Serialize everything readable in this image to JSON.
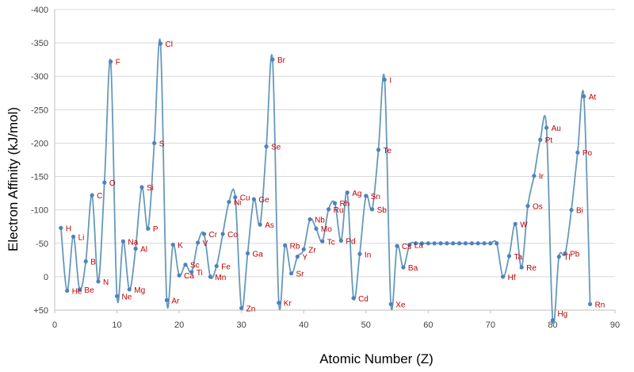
{
  "chart_data": {
    "type": "line",
    "title": "",
    "xlabel": "Atomic Number (Z)",
    "ylabel": "Electron Affinity (kJ/mol)",
    "xlim": [
      0,
      90
    ],
    "ylim": [
      50,
      -400
    ],
    "y_inverted": true,
    "x_ticks": [
      "0",
      "10",
      "20",
      "30",
      "40",
      "50",
      "60",
      "70",
      "80",
      "90"
    ],
    "y_ticks": [
      "+50",
      "0",
      "-50",
      "-100",
      "-150",
      "-200",
      "-250",
      "-300",
      "-350",
      "-400"
    ],
    "grid": "horizontal",
    "line_color": "#6699bb",
    "marker_color": "#4f81bd",
    "label_color": "#c00000",
    "series": [
      {
        "values": [
          [
            1,
            -73
          ],
          [
            2,
            21
          ],
          [
            3,
            -60
          ],
          [
            4,
            19
          ],
          [
            5,
            -23
          ],
          [
            6,
            -122
          ],
          [
            7,
            7
          ],
          [
            8,
            -141
          ],
          [
            9,
            -322
          ],
          [
            10,
            29
          ],
          [
            11,
            -53
          ],
          [
            12,
            19
          ],
          [
            13,
            -42
          ],
          [
            14,
            -134
          ],
          [
            15,
            -72
          ],
          [
            16,
            -200
          ],
          [
            17,
            -349
          ],
          [
            18,
            35
          ],
          [
            19,
            -48
          ],
          [
            20,
            -2
          ],
          [
            21,
            -18
          ],
          [
            22,
            -7
          ],
          [
            23,
            -51
          ],
          [
            24,
            -64
          ],
          [
            25,
            0
          ],
          [
            26,
            -16
          ],
          [
            27,
            -64
          ],
          [
            28,
            -112
          ],
          [
            29,
            -119
          ],
          [
            30,
            47
          ],
          [
            31,
            -35
          ],
          [
            32,
            -116
          ],
          [
            33,
            -78
          ],
          [
            34,
            -195
          ],
          [
            35,
            -325
          ],
          [
            36,
            39
          ],
          [
            37,
            -47
          ],
          [
            38,
            -5
          ],
          [
            39,
            -30
          ],
          [
            40,
            -41
          ],
          [
            41,
            -86
          ],
          [
            42,
            -72
          ],
          [
            43,
            -53
          ],
          [
            44,
            -101
          ],
          [
            45,
            -110
          ],
          [
            46,
            -54
          ],
          [
            47,
            -126
          ],
          [
            48,
            32
          ],
          [
            49,
            -34
          ],
          [
            50,
            -121
          ],
          [
            51,
            -101
          ],
          [
            52,
            -190
          ],
          [
            53,
            -295
          ],
          [
            54,
            41
          ],
          [
            55,
            -46
          ],
          [
            56,
            -14
          ],
          [
            57,
            -48
          ],
          [
            58,
            -50
          ],
          [
            59,
            -50
          ],
          [
            60,
            -50
          ],
          [
            61,
            -50
          ],
          [
            62,
            -50
          ],
          [
            63,
            -50
          ],
          [
            64,
            -50
          ],
          [
            65,
            -50
          ],
          [
            66,
            -50
          ],
          [
            67,
            -50
          ],
          [
            68,
            -50
          ],
          [
            69,
            -50
          ],
          [
            70,
            -50
          ],
          [
            71,
            -50
          ],
          [
            72,
            0
          ],
          [
            73,
            -31
          ],
          [
            74,
            -79
          ],
          [
            75,
            -14
          ],
          [
            76,
            -106
          ],
          [
            77,
            -151
          ],
          [
            78,
            -205
          ],
          [
            79,
            -223
          ],
          [
            80,
            65
          ],
          [
            81,
            -30
          ],
          [
            82,
            -35
          ],
          [
            83,
            -100
          ],
          [
            84,
            -186
          ],
          [
            85,
            -270
          ],
          [
            86,
            41
          ]
        ]
      }
    ],
    "element_labels": [
      {
        "z": 1,
        "text": "H"
      },
      {
        "z": 2,
        "text": "He"
      },
      {
        "z": 3,
        "text": "Li"
      },
      {
        "z": 4,
        "text": "Be"
      },
      {
        "z": 5,
        "text": "B"
      },
      {
        "z": 6,
        "text": "C"
      },
      {
        "z": 7,
        "text": "N"
      },
      {
        "z": 8,
        "text": "O"
      },
      {
        "z": 9,
        "text": "F"
      },
      {
        "z": 10,
        "text": "Ne"
      },
      {
        "z": 11,
        "text": "Na"
      },
      {
        "z": 12,
        "text": "Mg"
      },
      {
        "z": 13,
        "text": "Al"
      },
      {
        "z": 14,
        "text": "Si"
      },
      {
        "z": 15,
        "text": "P"
      },
      {
        "z": 16,
        "text": "S"
      },
      {
        "z": 17,
        "text": "Cl"
      },
      {
        "z": 18,
        "text": "Ar"
      },
      {
        "z": 19,
        "text": "K"
      },
      {
        "z": 20,
        "text": "Ca"
      },
      {
        "z": 21,
        "text": "Sc"
      },
      {
        "z": 22,
        "text": "Ti"
      },
      {
        "z": 23,
        "text": "V"
      },
      {
        "z": 24,
        "text": "Cr"
      },
      {
        "z": 25,
        "text": "Mn"
      },
      {
        "z": 26,
        "text": "Fe"
      },
      {
        "z": 27,
        "text": "Co"
      },
      {
        "z": 28,
        "text": "Ni"
      },
      {
        "z": 29,
        "text": "Cu"
      },
      {
        "z": 30,
        "text": "Zn"
      },
      {
        "z": 31,
        "text": "Ga"
      },
      {
        "z": 32,
        "text": "Ge"
      },
      {
        "z": 33,
        "text": "As"
      },
      {
        "z": 34,
        "text": "Se"
      },
      {
        "z": 35,
        "text": "Br"
      },
      {
        "z": 36,
        "text": "Kr"
      },
      {
        "z": 37,
        "text": "Rb"
      },
      {
        "z": 38,
        "text": "Sr"
      },
      {
        "z": 39,
        "text": "Y"
      },
      {
        "z": 40,
        "text": "Zr"
      },
      {
        "z": 41,
        "text": "Nb"
      },
      {
        "z": 42,
        "text": "Mo"
      },
      {
        "z": 43,
        "text": "Tc"
      },
      {
        "z": 44,
        "text": "Ru"
      },
      {
        "z": 45,
        "text": "Rh"
      },
      {
        "z": 46,
        "text": "Pd"
      },
      {
        "z": 47,
        "text": "Ag"
      },
      {
        "z": 48,
        "text": "Cd"
      },
      {
        "z": 49,
        "text": "In"
      },
      {
        "z": 50,
        "text": "Sn"
      },
      {
        "z": 51,
        "text": "Sb"
      },
      {
        "z": 52,
        "text": "Te"
      },
      {
        "z": 53,
        "text": "I"
      },
      {
        "z": 54,
        "text": "Xe"
      },
      {
        "z": 55,
        "text": "Cs"
      },
      {
        "z": 56,
        "text": "Ba"
      },
      {
        "z": 57,
        "text": "La"
      },
      {
        "z": 72,
        "text": "Hf"
      },
      {
        "z": 73,
        "text": "Ta"
      },
      {
        "z": 74,
        "text": "W"
      },
      {
        "z": 75,
        "text": "Re"
      },
      {
        "z": 76,
        "text": "Os"
      },
      {
        "z": 77,
        "text": "Ir"
      },
      {
        "z": 78,
        "text": "Pt"
      },
      {
        "z": 79,
        "text": "Au"
      },
      {
        "z": 80,
        "text": "Hg"
      },
      {
        "z": 81,
        "text": "Tl"
      },
      {
        "z": 82,
        "text": "Pb"
      },
      {
        "z": 83,
        "text": "Bi"
      },
      {
        "z": 84,
        "text": "Po"
      },
      {
        "z": 85,
        "text": "At"
      },
      {
        "z": 86,
        "text": "Rn"
      }
    ]
  }
}
